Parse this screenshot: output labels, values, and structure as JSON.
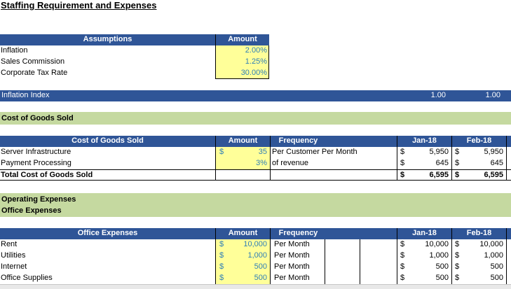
{
  "title": "Staffing Requirement and Expenses",
  "assumptions": {
    "header_label": "Assumptions",
    "amount_label": "Amount",
    "rows": [
      {
        "label": "Inflation",
        "value": "2.00%"
      },
      {
        "label": "Sales Commission",
        "value": "1.25%"
      },
      {
        "label": "Corporate Tax Rate",
        "value": "30.00%"
      }
    ]
  },
  "inflation_index": {
    "label": "Inflation Index",
    "jan": "1.00",
    "feb": "1.00"
  },
  "cogs_section": "Cost of Goods Sold",
  "cogs_table": {
    "header_label": "Cost of Goods Sold",
    "amount_label": "Amount",
    "frequency_label": "Frequency",
    "month1": "Jan-18",
    "month2": "Feb-18",
    "rows": [
      {
        "label": "Server Infrastructure",
        "currency": "$",
        "amount": "35",
        "frequency": "Per Customer Per Month",
        "jan_cur": "$",
        "jan": "5,950",
        "feb_cur": "$",
        "feb": "5,950"
      },
      {
        "label": "Payment Processing",
        "currency": "",
        "amount": "3%",
        "frequency": "of revenue",
        "jan_cur": "$",
        "jan": "645",
        "feb_cur": "$",
        "feb": "645"
      }
    ],
    "total": {
      "label": "Total Cost of Goods Sold",
      "jan_cur": "$",
      "jan": "6,595",
      "feb_cur": "$",
      "feb": "6,595"
    }
  },
  "opex_section": {
    "line1": "Operating Expenses",
    "line2": "Office Expenses"
  },
  "office_table": {
    "header_label": "Office Expenses",
    "amount_label": "Amount",
    "frequency_label": "Frequency",
    "month1": "Jan-18",
    "month2": "Feb-18",
    "rows": [
      {
        "label": "Rent",
        "currency": "$",
        "amount": "10,000",
        "frequency": "Per Month",
        "jan_cur": "$",
        "jan": "10,000",
        "feb_cur": "$",
        "feb": "10,000"
      },
      {
        "label": "Utilities",
        "currency": "$",
        "amount": "1,000",
        "frequency": "Per Month",
        "jan_cur": "$",
        "jan": "1,000",
        "feb_cur": "$",
        "feb": "1,000"
      },
      {
        "label": "Internet",
        "currency": "$",
        "amount": "500",
        "frequency": "Per Month",
        "jan_cur": "$",
        "jan": "500",
        "feb_cur": "$",
        "feb": "500"
      },
      {
        "label": "Office Supplies",
        "currency": "$",
        "amount": "500",
        "frequency": "Per Month",
        "jan_cur": "$",
        "jan": "500",
        "feb_cur": "$",
        "feb": "500"
      }
    ]
  },
  "colors": {
    "header_blue": "#2f5597",
    "input_yellow": "#ffff99",
    "section_green": "#c5d9a0",
    "input_text_teal": "#2f7fb7"
  }
}
